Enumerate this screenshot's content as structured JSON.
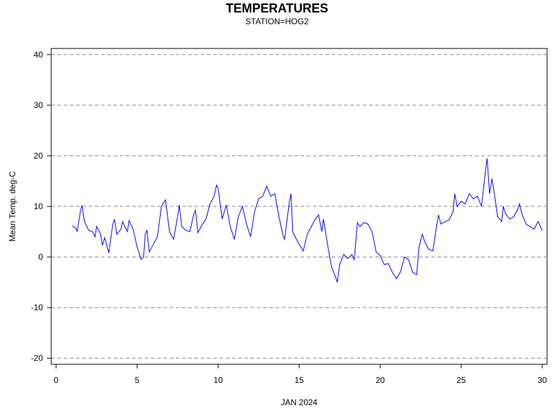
{
  "chart_data": {
    "type": "line",
    "title": "TEMPERATURES",
    "subtitle": "STATION=HOG2",
    "x_label": "JAN 2024",
    "y_label": "Mean Temp. deg-C",
    "x": [
      1.0,
      1.25,
      1.3,
      1.5,
      1.6,
      1.75,
      2.0,
      2.25,
      2.4,
      2.5,
      2.75,
      2.85,
      3.0,
      3.25,
      3.5,
      3.6,
      3.75,
      4.0,
      4.1,
      4.25,
      4.4,
      4.5,
      4.75,
      5.0,
      5.25,
      5.4,
      5.5,
      5.6,
      5.75,
      6.0,
      6.25,
      6.5,
      6.75,
      7.0,
      7.25,
      7.5,
      7.6,
      7.75,
      8.0,
      8.25,
      8.5,
      8.6,
      8.75,
      9.0,
      9.25,
      9.5,
      9.75,
      9.9,
      10.0,
      10.25,
      10.5,
      10.75,
      11.0,
      11.25,
      11.5,
      11.75,
      12.0,
      12.25,
      12.5,
      12.75,
      13.0,
      13.25,
      13.5,
      13.75,
      14.0,
      14.1,
      14.4,
      14.5,
      14.6,
      14.75,
      15.0,
      15.25,
      15.5,
      15.75,
      16.0,
      16.2,
      16.4,
      16.5,
      16.75,
      17.0,
      17.25,
      17.35,
      17.5,
      17.75,
      18.0,
      18.25,
      18.4,
      18.6,
      18.75,
      19.0,
      19.25,
      19.5,
      19.75,
      20.0,
      20.25,
      20.5,
      20.75,
      21.0,
      21.25,
      21.5,
      21.75,
      22.0,
      22.25,
      22.4,
      22.6,
      22.75,
      23.0,
      23.25,
      23.5,
      23.6,
      23.75,
      24.0,
      24.25,
      24.5,
      24.6,
      24.75,
      25.0,
      25.25,
      25.5,
      25.75,
      26.0,
      26.25,
      26.5,
      26.6,
      26.75,
      26.9,
      27.0,
      27.25,
      27.5,
      27.6,
      27.75,
      28.0,
      28.25,
      28.5,
      28.6,
      28.75,
      29.0,
      29.25,
      29.5,
      29.75,
      30.0
    ],
    "series": [
      {
        "name": "Mean Temp.",
        "color": "#0000ff",
        "values": [
          6.2,
          5.5,
          5,
          9,
          10.2,
          7,
          5.3,
          5,
          4,
          6,
          4.5,
          2.3,
          3.8,
          0.8,
          6.5,
          7.5,
          4.5,
          5.5,
          7,
          6,
          5,
          7.2,
          5.5,
          2,
          -0.5,
          0,
          4.5,
          5.3,
          1,
          2.5,
          4,
          10,
          11.3,
          5,
          3.5,
          8,
          10.3,
          6,
          5.3,
          5,
          8.5,
          9.2,
          4.8,
          6.3,
          7.5,
          10.5,
          12,
          14.2,
          13.5,
          7.5,
          10.3,
          6,
          3.5,
          8,
          10,
          6.5,
          4,
          9,
          11.5,
          12,
          14,
          12,
          12.5,
          8,
          4.3,
          3.5,
          11,
          12.5,
          5,
          4,
          2.5,
          1.2,
          4.5,
          6,
          7.5,
          8.3,
          5,
          7.5,
          2.5,
          -2,
          -4,
          -5,
          -1.5,
          0.5,
          -0.3,
          0.5,
          -0.5,
          6.8,
          6,
          6.8,
          6.5,
          5,
          1,
          0.3,
          -1.5,
          -1.3,
          -3,
          -4.3,
          -3,
          0,
          -0.5,
          -3,
          -3.5,
          2,
          4.5,
          3,
          1.5,
          1.2,
          6.5,
          8.3,
          6.5,
          7,
          7.3,
          9,
          12.5,
          10,
          11,
          10.5,
          12.5,
          11.5,
          12,
          10,
          17,
          19.5,
          12.5,
          15.5,
          13.5,
          8,
          7,
          10,
          8.5,
          7.5,
          8,
          9.5,
          10.5,
          8.5,
          6.5,
          6,
          5.5,
          7,
          5.2
        ]
      }
    ],
    "xlim": [
      -0.3,
      30.3
    ],
    "xticks": [
      0,
      5,
      10,
      15,
      20,
      25,
      30
    ],
    "ylim": [
      -21.2,
      41.2
    ],
    "yticks": [
      -20,
      -10,
      0,
      10,
      20,
      30,
      40
    ],
    "grid": true
  }
}
